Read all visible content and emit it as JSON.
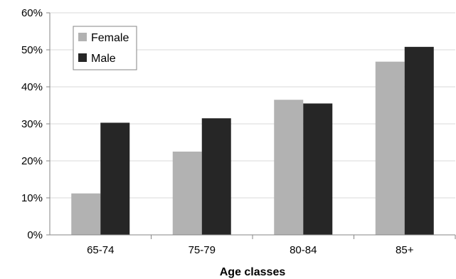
{
  "chart_data": {
    "type": "bar",
    "categories": [
      "65-74",
      "75-79",
      "80-84",
      "85+"
    ],
    "series": [
      {
        "name": "Female",
        "values": [
          11.2,
          22.5,
          36.5,
          46.8
        ],
        "color": "#b2b2b2"
      },
      {
        "name": "Male",
        "values": [
          30.3,
          31.5,
          35.5,
          50.8
        ],
        "color": "#262626"
      }
    ],
    "title": "",
    "xlabel": "Age classes",
    "ylabel": "",
    "ylim": [
      0,
      60
    ],
    "yticks": [
      0,
      10,
      20,
      30,
      40,
      50,
      60
    ],
    "ytick_labels": [
      "0%",
      "10%",
      "20%",
      "30%",
      "40%",
      "50%",
      "60%"
    ],
    "grid": true,
    "legend_position": "top-left",
    "colors": {
      "grid": "#d9d9d9",
      "axis": "#868686"
    }
  }
}
